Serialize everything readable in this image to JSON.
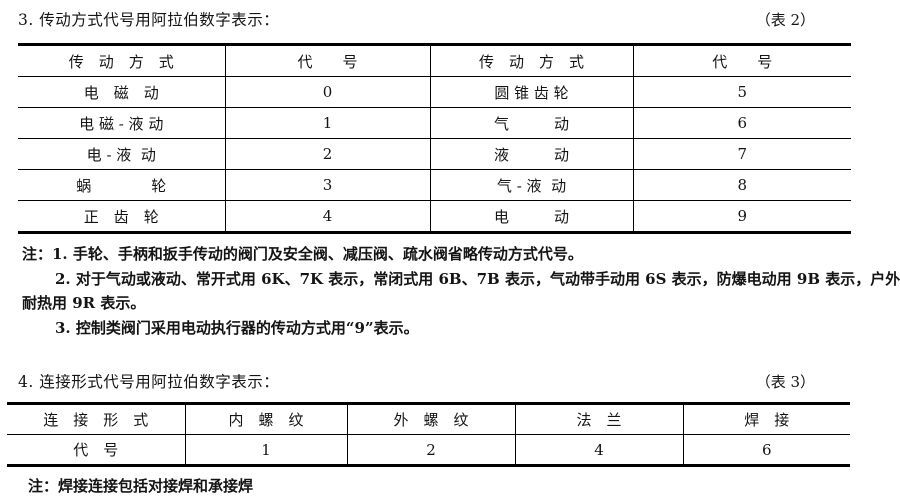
{
  "section3": {
    "heading": "3. 传动方式代号用阿拉伯数字表示：",
    "table_label": "（表 2）",
    "table": {
      "headers": [
        "传　动　方　式",
        "代　　号",
        "传　动　方　式",
        "代　　号"
      ],
      "rows": [
        [
          "电　磁　动",
          "0",
          "圆 锥 齿 轮",
          "5"
        ],
        [
          "电 磁 - 液 动",
          "1",
          "气　　　动",
          "6"
        ],
        [
          "电 - 液  动",
          "2",
          "液　　　动",
          "7"
        ],
        [
          "蜗　　　　轮",
          "3",
          "气 - 液  动",
          "8"
        ],
        [
          "正　齿　轮",
          "4",
          "电　　　动",
          "9"
        ]
      ]
    },
    "notes": [
      "注：1. 手轮、手柄和扳手传动的阀门及安全阀、减压阀、疏水阀省略传动方式代号。",
      "2. 对于气动或液动、常开式用 6K、7K 表示，常闭式用 6B、7B 表示，气动带手动用 6S 表示，防爆电动用 9B 表示，户外",
      "耐热用 9R 表示。",
      "3. 控制类阀门采用电动执行器的传动方式用“9”表示。"
    ]
  },
  "section4": {
    "heading": "4. 连接形式代号用阿拉伯数字表示：",
    "table_label": "（表 3）",
    "table": {
      "headers": [
        "连　接　形　式",
        "内　螺　纹",
        "外　螺　纹",
        "法　兰",
        "焊　接"
      ],
      "row": [
        "代　号",
        "1",
        "2",
        "4",
        "6"
      ]
    },
    "note": "注：焊接连接包括对接焊和承接焊"
  }
}
